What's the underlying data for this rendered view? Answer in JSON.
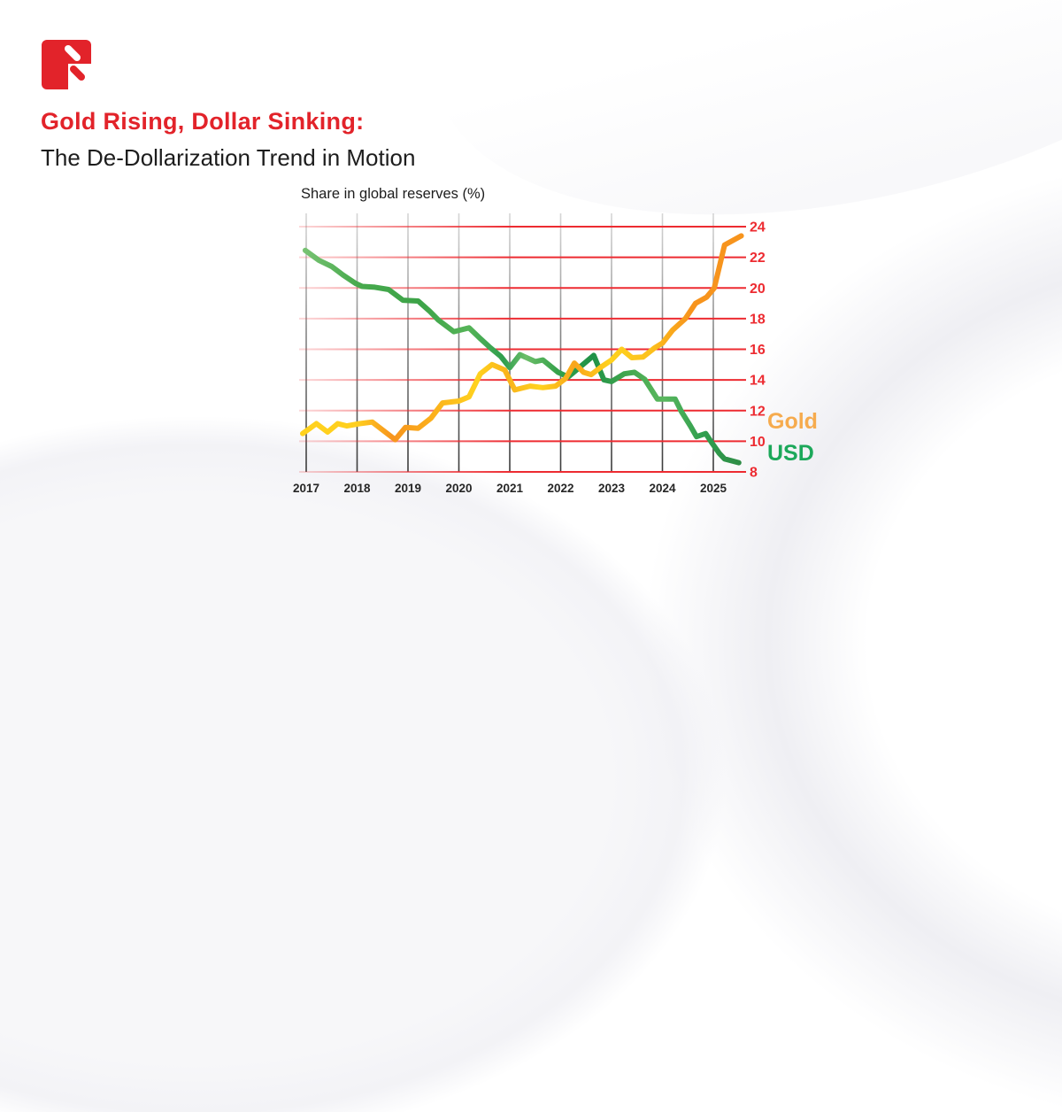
{
  "header": {
    "title_accent": "Gold Rising, Dollar Sinking:",
    "title_main": "The De-Dollarization Trend in Motion"
  },
  "colors": {
    "accent_red": "#E2232A",
    "axis_red": "#ED2B31",
    "text_dark": "#1D1D1D"
  },
  "legend": {
    "items": [
      {
        "label": "Gold",
        "color": "#F6AB4E"
      },
      {
        "label": "USD",
        "color": "#1CA85A"
      }
    ]
  },
  "chart_data": {
    "type": "line",
    "title": "Share in global reserves (%)",
    "xlabel": "",
    "ylabel": "Share in global reserves (%)",
    "ylim": [
      8,
      24
    ],
    "y_ticks": [
      24,
      22,
      20,
      18,
      16,
      14,
      12,
      10,
      8
    ],
    "categories": [
      "2017",
      "2018",
      "2019",
      "2020",
      "2021",
      "2022",
      "2023",
      "2024",
      "2025"
    ],
    "grid": true,
    "legend_position": "right",
    "series": [
      {
        "id": "gold",
        "name": "Gold",
        "color": "#F7A11C",
        "gradient_stops": [
          [
            0,
            "#FFD21E"
          ],
          [
            13,
            "#FFCF1E"
          ],
          [
            21,
            "#F7941D"
          ],
          [
            29,
            "#FBAD1C"
          ],
          [
            40,
            "#FFD21E"
          ],
          [
            47,
            "#F9B31C"
          ],
          [
            54,
            "#FFD21E"
          ],
          [
            62,
            "#F9A51B"
          ],
          [
            70,
            "#FFD21E"
          ],
          [
            79,
            "#FCC11C"
          ],
          [
            88,
            "#F7941D"
          ],
          [
            100,
            "#F7941D"
          ]
        ],
        "points": [
          [
            2016.93,
            10.5
          ],
          [
            2017.2,
            11.15
          ],
          [
            2017.42,
            10.6
          ],
          [
            2017.62,
            11.15
          ],
          [
            2017.8,
            11.0
          ],
          [
            2018.05,
            11.15
          ],
          [
            2018.3,
            11.25
          ],
          [
            2018.75,
            10.1
          ],
          [
            2018.95,
            10.9
          ],
          [
            2019.2,
            10.85
          ],
          [
            2019.45,
            11.5
          ],
          [
            2019.68,
            12.5
          ],
          [
            2020.0,
            12.62
          ],
          [
            2020.2,
            12.9
          ],
          [
            2020.42,
            14.4
          ],
          [
            2020.65,
            15.0
          ],
          [
            2020.9,
            14.65
          ],
          [
            2021.1,
            13.35
          ],
          [
            2021.4,
            13.6
          ],
          [
            2021.65,
            13.5
          ],
          [
            2021.9,
            13.6
          ],
          [
            2022.1,
            14.1
          ],
          [
            2022.27,
            15.1
          ],
          [
            2022.45,
            14.5
          ],
          [
            2022.6,
            14.35
          ],
          [
            2022.8,
            14.85
          ],
          [
            2023.0,
            15.3
          ],
          [
            2023.2,
            16.0
          ],
          [
            2023.4,
            15.45
          ],
          [
            2023.62,
            15.5
          ],
          [
            2023.85,
            16.1
          ],
          [
            2024.0,
            16.4
          ],
          [
            2024.2,
            17.25
          ],
          [
            2024.45,
            18.0
          ],
          [
            2024.65,
            19.0
          ],
          [
            2024.87,
            19.4
          ],
          [
            2025.02,
            20.0
          ],
          [
            2025.22,
            22.8
          ],
          [
            2025.55,
            23.4
          ]
        ]
      },
      {
        "id": "usd",
        "name": "USD",
        "color": "#3FA64C",
        "gradient_stops": [
          [
            0,
            "#7CC576"
          ],
          [
            13,
            "#48AA4D"
          ],
          [
            27,
            "#3CA348"
          ],
          [
            38,
            "#56B458"
          ],
          [
            46,
            "#2F9E4E"
          ],
          [
            51,
            "#6CBE69"
          ],
          [
            58,
            "#37A24B"
          ],
          [
            66,
            "#1F9147"
          ],
          [
            74,
            "#44A84F"
          ],
          [
            82,
            "#5AB75E"
          ],
          [
            91,
            "#2F9E4E"
          ],
          [
            100,
            "#2E8B45"
          ]
        ],
        "points": [
          [
            2016.98,
            22.45
          ],
          [
            2017.25,
            21.8
          ],
          [
            2017.5,
            21.4
          ],
          [
            2017.72,
            20.85
          ],
          [
            2017.97,
            20.3
          ],
          [
            2018.1,
            20.1
          ],
          [
            2018.35,
            20.05
          ],
          [
            2018.62,
            19.9
          ],
          [
            2018.9,
            19.2
          ],
          [
            2019.2,
            19.15
          ],
          [
            2019.42,
            18.5
          ],
          [
            2019.6,
            17.9
          ],
          [
            2019.9,
            17.15
          ],
          [
            2020.2,
            17.4
          ],
          [
            2020.42,
            16.7
          ],
          [
            2020.62,
            16.1
          ],
          [
            2020.82,
            15.55
          ],
          [
            2021.0,
            14.8
          ],
          [
            2021.2,
            15.65
          ],
          [
            2021.5,
            15.2
          ],
          [
            2021.65,
            15.3
          ],
          [
            2021.95,
            14.5
          ],
          [
            2022.15,
            14.2
          ],
          [
            2022.65,
            15.6
          ],
          [
            2022.85,
            14.0
          ],
          [
            2023.0,
            13.9
          ],
          [
            2023.25,
            14.4
          ],
          [
            2023.45,
            14.5
          ],
          [
            2023.65,
            14.05
          ],
          [
            2023.9,
            12.75
          ],
          [
            2024.25,
            12.75
          ],
          [
            2024.37,
            11.95
          ],
          [
            2024.55,
            11.0
          ],
          [
            2024.67,
            10.3
          ],
          [
            2024.85,
            10.5
          ],
          [
            2024.97,
            9.9
          ],
          [
            2025.12,
            9.2
          ],
          [
            2025.22,
            8.85
          ],
          [
            2025.5,
            8.6
          ]
        ]
      }
    ]
  }
}
